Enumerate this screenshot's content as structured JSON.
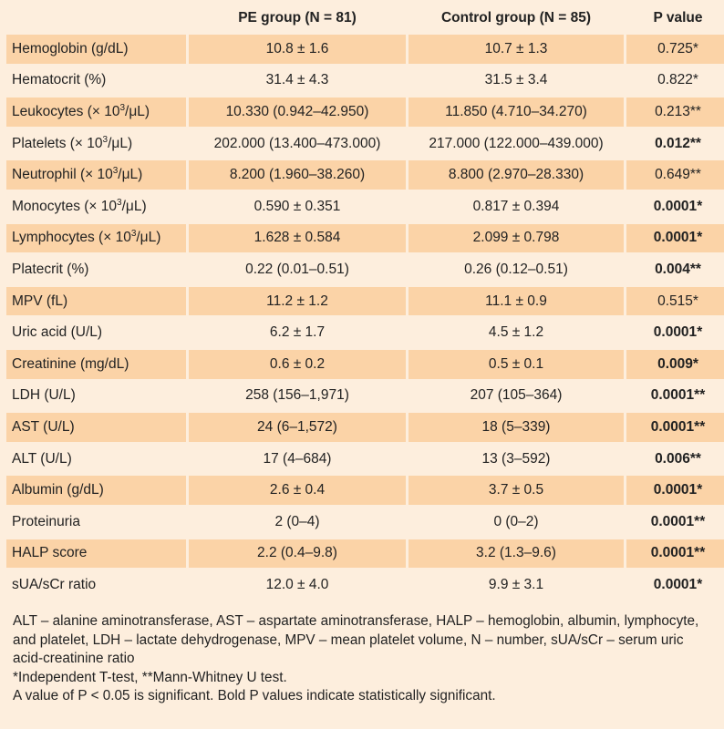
{
  "table": {
    "headers": [
      "",
      "PE group (N = 81)",
      "Control group (N = 85)",
      "P value"
    ],
    "rows": [
      {
        "label": "Hemoglobin (g/dL)",
        "pe": "10.8 ± 1.6",
        "control": "10.7 ± 1.3",
        "p": "0.725",
        "mark": "*",
        "bold": false
      },
      {
        "label": "Hematocrit (%)",
        "pe": "31.4 ± 4.3",
        "control": "31.5 ± 3.4",
        "p": "0.822",
        "mark": "*",
        "bold": false
      },
      {
        "label_pre": "Leukocytes (× 10",
        "label_sup": "3",
        "label_post": "/μL)",
        "pe": "10.330 (0.942–42.950)",
        "control": "11.850 (4.710–34.270)",
        "p": "0.213",
        "mark": "**",
        "bold": false
      },
      {
        "label_pre": "Platelets (× 10",
        "label_sup": "3",
        "label_post": "/μL)",
        "pe": "202.000 (13.400–473.000)",
        "control": "217.000 (122.000–439.000)",
        "p": "0.012",
        "mark": "**",
        "bold": true
      },
      {
        "label_pre": "Neutrophil (× 10",
        "label_sup": "3",
        "label_post": "/μL)",
        "pe": "8.200 (1.960–38.260)",
        "control": "8.800 (2.970–28.330)",
        "p": "0.649",
        "mark": "**",
        "bold": false
      },
      {
        "label_pre": "Monocytes (× 10",
        "label_sup": "3",
        "label_post": "/μL)",
        "pe": "0.590 ± 0.351",
        "control": "0.817 ± 0.394",
        "p": "0.0001",
        "mark": "*",
        "bold": true
      },
      {
        "label_pre": "Lymphocytes (× 10",
        "label_sup": "3",
        "label_post": "/μL)",
        "pe": "1.628 ± 0.584",
        "control": "2.099 ± 0.798",
        "p": "0.0001",
        "mark": "*",
        "bold": true
      },
      {
        "label": "Platecrit (%)",
        "pe": "0.22 (0.01–0.51)",
        "control": "0.26 (0.12–0.51)",
        "p": "0.004",
        "mark": "**",
        "bold": true
      },
      {
        "label": "MPV (fL)",
        "pe": "11.2 ± 1.2",
        "control": "11.1 ± 0.9",
        "p": "0.515",
        "mark": "*",
        "bold": false
      },
      {
        "label": "Uric acid (U/L)",
        "pe": "6.2 ± 1.7",
        "control": "4.5 ± 1.2",
        "p": "0.0001",
        "mark": "*",
        "bold": true
      },
      {
        "label": "Creatinine (mg/dL)",
        "pe": "0.6 ± 0.2",
        "control": "0.5 ± 0.1",
        "p": "0.009",
        "mark": "*",
        "bold": true
      },
      {
        "label": "LDH (U/L)",
        "pe": "258 (156–1,971)",
        "control": "207 (105–364)",
        "p": "0.0001",
        "mark": "**",
        "bold": true
      },
      {
        "label": "AST (U/L)",
        "pe": "24 (6–1,572)",
        "control": "18 (5–339)",
        "p": "0.0001",
        "mark": "**",
        "bold": true
      },
      {
        "label": "ALT (U/L)",
        "pe": "17 (4–684)",
        "control": "13 (3–592)",
        "p": "0.006",
        "mark": "**",
        "bold": true
      },
      {
        "label": "Albumin (g/dL)",
        "pe": "2.6 ± 0.4",
        "control": "3.7 ± 0.5",
        "p": "0.0001",
        "mark": "*",
        "bold": true
      },
      {
        "label": "Proteinuria",
        "pe": "2 (0–4)",
        "control": "0 (0–2)",
        "p": "0.0001",
        "mark": "**",
        "bold": true
      },
      {
        "label": "HALP score",
        "pe": "2.2 (0.4–9.8)",
        "control": "3.2 (1.3–9.6)",
        "p": "0.0001",
        "mark": "**",
        "bold": true
      },
      {
        "label": "sUA/sCr ratio",
        "pe": "12.0 ± 4.0",
        "control": "9.9 ± 3.1",
        "p": "0.0001",
        "mark": "*",
        "bold": true
      }
    ]
  },
  "footnotes": {
    "abbreviations": "ALT – alanine aminotransferase, AST – aspartate aminotransferase, HALP – hemoglobin, albumin, lymphocyte, and platelet, LDH – lactate dehydrogenase, MPV – mean platelet volume, N – number, sUA/sCr – serum uric acid-creatinine ratio",
    "tests": "*Independent T-test, **Mann-Whitney U test.",
    "significance": "A value of P < 0.05 is significant. Bold P values indicate statistically significant."
  }
}
